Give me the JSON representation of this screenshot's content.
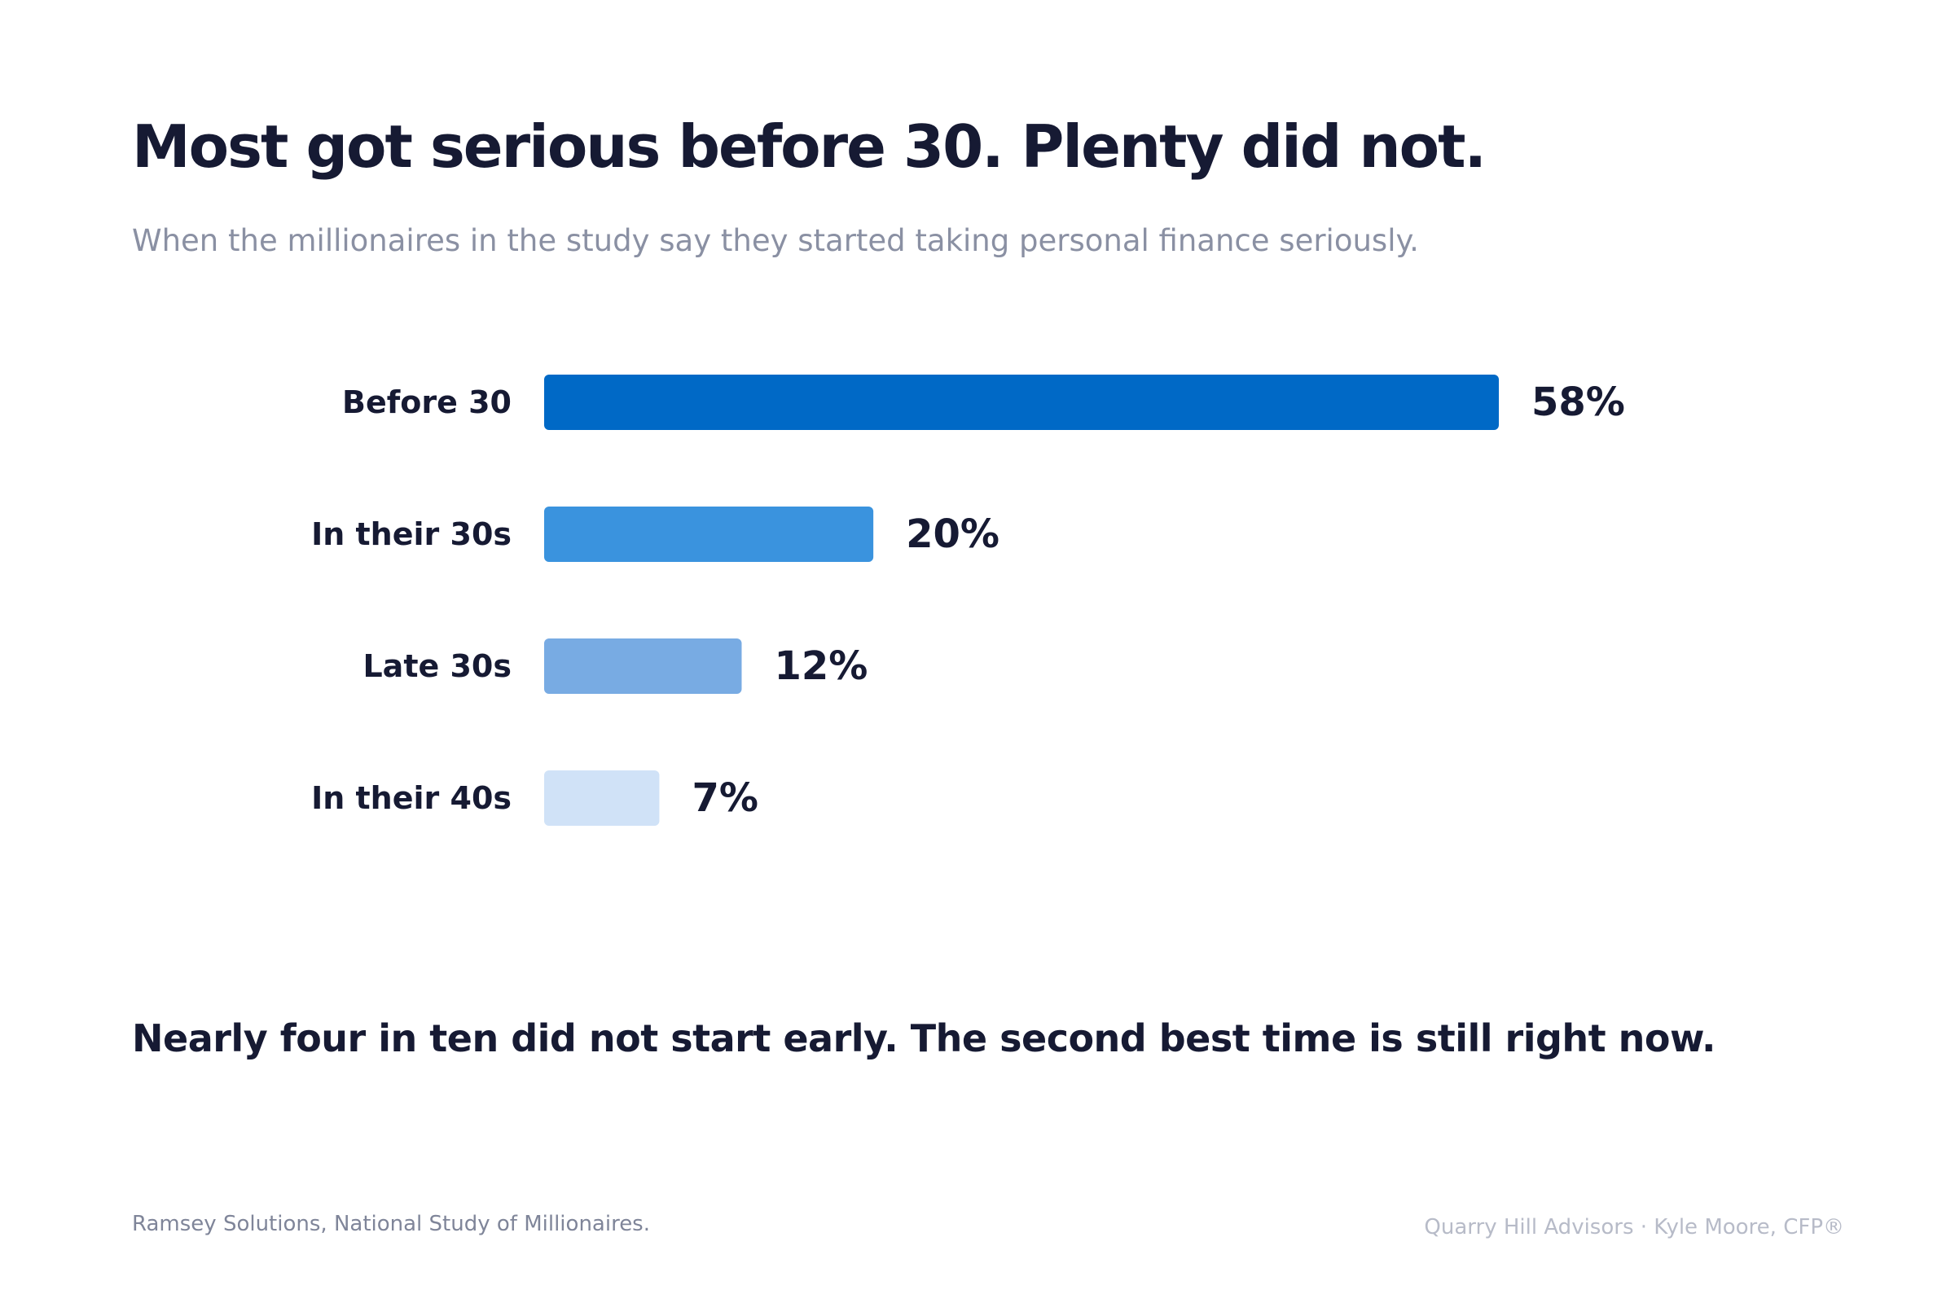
{
  "title": "Most got serious before 30. Plenty did not.",
  "subtitle": "When the millionaires in the study say they started taking personal finance seriously.",
  "chart_data": {
    "type": "bar",
    "orientation": "horizontal",
    "categories": [
      "Before 30",
      "In their 30s",
      "Late 30s",
      "In their 40s"
    ],
    "values": [
      58,
      20,
      12,
      7
    ],
    "value_labels": [
      "58%",
      "20%",
      "12%",
      "7%"
    ],
    "colors": [
      "#0069c6",
      "#3a93de",
      "#78abe3",
      "#d0e2f7"
    ],
    "xlim": [
      0,
      58
    ],
    "grid": false
  },
  "takeaway": "Nearly four in ten did not start early. The second best time is still right now.",
  "source": "Ramsey Solutions, National Study of Millionaires.",
  "credit": "Quarry Hill Advisors · Kyle Moore, CFP®"
}
